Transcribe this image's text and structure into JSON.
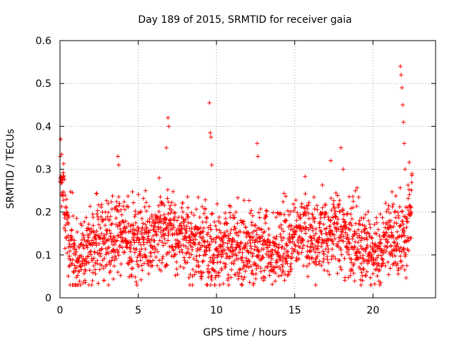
{
  "chart_data": {
    "type": "scatter",
    "title": "Day 189 of 2015, SRMTID for receiver gaia",
    "xlabel": "GPS time / hours",
    "ylabel": "SRMTID / TECUs",
    "xlim": [
      0,
      24
    ],
    "ylim": [
      0,
      0.6
    ],
    "x_ticks": [
      0,
      5,
      10,
      15,
      20
    ],
    "x_tick_labels": [
      "0",
      "5",
      "10",
      "15",
      "20"
    ],
    "y_ticks": [
      0,
      0.1,
      0.2,
      0.3,
      0.4,
      0.5,
      0.6
    ],
    "y_tick_labels": [
      "0",
      "0.1",
      "0.2",
      "0.3",
      "0.4",
      "0.5",
      "0.6"
    ],
    "grid": true,
    "marker": "+",
    "series": [
      {
        "name": "SRMTID",
        "color": "#ff0000",
        "profile": [
          [
            0.0,
            0.3
          ],
          [
            0.3,
            0.22
          ],
          [
            0.6,
            0.13
          ],
          [
            1.0,
            0.1
          ],
          [
            1.5,
            0.1
          ],
          [
            2.0,
            0.12
          ],
          [
            2.5,
            0.14
          ],
          [
            3.0,
            0.13
          ],
          [
            3.5,
            0.16
          ],
          [
            4.0,
            0.15
          ],
          [
            4.5,
            0.13
          ],
          [
            5.0,
            0.13
          ],
          [
            5.5,
            0.14
          ],
          [
            6.0,
            0.14
          ],
          [
            6.5,
            0.16
          ],
          [
            7.0,
            0.17
          ],
          [
            7.5,
            0.15
          ],
          [
            8.0,
            0.15
          ],
          [
            8.5,
            0.13
          ],
          [
            9.0,
            0.12
          ],
          [
            9.5,
            0.12
          ],
          [
            10.0,
            0.1
          ],
          [
            10.5,
            0.12
          ],
          [
            11.0,
            0.12
          ],
          [
            11.5,
            0.11
          ],
          [
            12.0,
            0.11
          ],
          [
            12.5,
            0.12
          ],
          [
            13.0,
            0.12
          ],
          [
            13.5,
            0.11
          ],
          [
            14.0,
            0.11
          ],
          [
            14.5,
            0.13
          ],
          [
            15.0,
            0.16
          ],
          [
            15.5,
            0.16
          ],
          [
            16.0,
            0.14
          ],
          [
            16.5,
            0.14
          ],
          [
            17.0,
            0.15
          ],
          [
            17.5,
            0.16
          ],
          [
            18.0,
            0.16
          ],
          [
            18.5,
            0.14
          ],
          [
            19.0,
            0.13
          ],
          [
            19.5,
            0.13
          ],
          [
            20.0,
            0.1
          ],
          [
            20.5,
            0.11
          ],
          [
            21.0,
            0.15
          ],
          [
            21.5,
            0.14
          ],
          [
            22.0,
            0.15
          ],
          [
            22.5,
            0.21
          ]
        ],
        "spread": 0.045,
        "peaks": [
          {
            "x": 0.05,
            "y": 0.37
          },
          {
            "x": 0.1,
            "y": 0.335
          },
          {
            "x": 3.7,
            "y": 0.33
          },
          {
            "x": 3.75,
            "y": 0.31
          },
          {
            "x": 6.8,
            "y": 0.35
          },
          {
            "x": 6.9,
            "y": 0.42
          },
          {
            "x": 6.95,
            "y": 0.4
          },
          {
            "x": 9.55,
            "y": 0.455
          },
          {
            "x": 9.6,
            "y": 0.385
          },
          {
            "x": 9.65,
            "y": 0.375
          },
          {
            "x": 9.7,
            "y": 0.31
          },
          {
            "x": 12.6,
            "y": 0.36
          },
          {
            "x": 12.65,
            "y": 0.33
          },
          {
            "x": 17.3,
            "y": 0.32
          },
          {
            "x": 17.95,
            "y": 0.35
          },
          {
            "x": 18.1,
            "y": 0.3
          },
          {
            "x": 21.75,
            "y": 0.54
          },
          {
            "x": 21.8,
            "y": 0.52
          },
          {
            "x": 21.85,
            "y": 0.49
          },
          {
            "x": 21.9,
            "y": 0.45
          },
          {
            "x": 21.95,
            "y": 0.41
          },
          {
            "x": 22.0,
            "y": 0.36
          },
          {
            "x": 22.05,
            "y": 0.3
          }
        ]
      }
    ]
  }
}
